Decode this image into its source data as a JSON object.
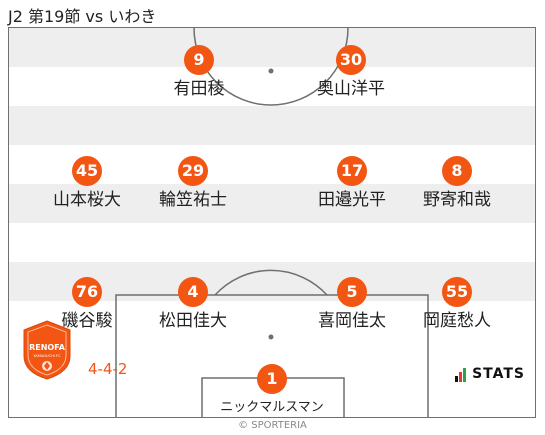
{
  "header": {
    "title": "J2 第19節 vs いわき"
  },
  "formation": "4-4-2",
  "players": [
    {
      "number": "9",
      "name": "有田稜"
    },
    {
      "number": "30",
      "name": "奥山洋平"
    },
    {
      "number": "45",
      "name": "山本桜大"
    },
    {
      "number": "29",
      "name": "輪笠祐士"
    },
    {
      "number": "17",
      "name": "田邉光平"
    },
    {
      "number": "8",
      "name": "野寄和哉"
    },
    {
      "number": "76",
      "name": "磯谷駿"
    },
    {
      "number": "4",
      "name": "松田佳大"
    },
    {
      "number": "5",
      "name": "喜岡佳太"
    },
    {
      "number": "55",
      "name": "岡庭愁人"
    },
    {
      "number": "1",
      "name": "ニックマルスマン"
    }
  ],
  "club_logo": {
    "text": "RENOFA",
    "subtext": "YAMAGUCHI FC"
  },
  "provider": {
    "name": "STATS"
  },
  "copyright": "© SPORTERIA",
  "colors": {
    "accent": "#f35512",
    "band": "#eeeeee",
    "line": "#6f6f6f"
  }
}
